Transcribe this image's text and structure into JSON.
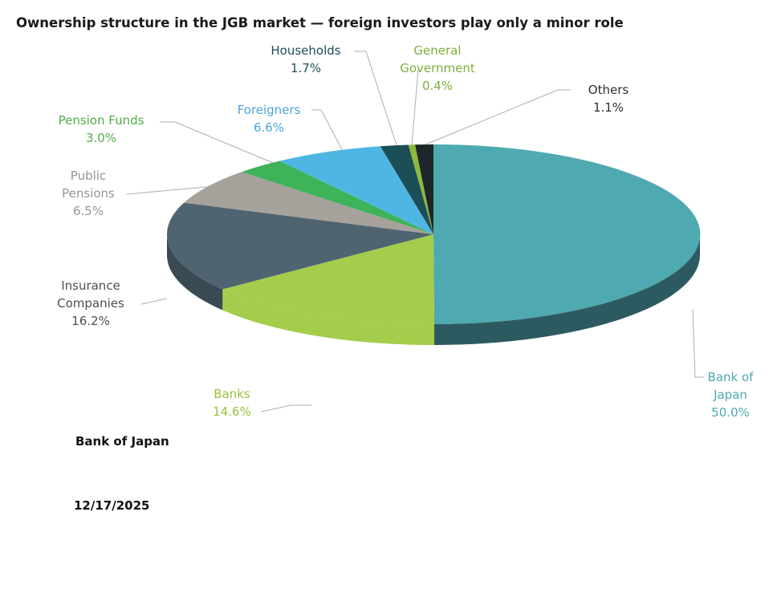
{
  "title": "Ownership structure in the JGB market — foreign investors play only a minor role",
  "source": "Bank of Japan",
  "date": "12/17/2025",
  "chart_data": {
    "type": "pie",
    "style": "3d",
    "title": "Ownership structure in the JGB market — foreign investors play only a minor role",
    "unit": "%",
    "start_angle_deg": 0,
    "direction": "clockwise",
    "slices": [
      {
        "key": "boj",
        "label_lines": [
          "Bank of",
          "Japan"
        ],
        "value": 50.0,
        "value_label": "50.0%",
        "color": "#4fa9b0",
        "side_color": "#2d5a60",
        "label_color": "#4fa9b0"
      },
      {
        "key": "banks",
        "label_lines": [
          "Banks"
        ],
        "value": 14.6,
        "value_label": "14.6%",
        "color": "#a3cd4b",
        "side_color": "#a3cd4b",
        "label_color": "#99c23c"
      },
      {
        "key": "insurance",
        "label_lines": [
          "Insurance",
          "Companies"
        ],
        "value": 16.2,
        "value_label": "16.2%",
        "color": "#4f6470",
        "side_color": "#3a4a53",
        "label_color": "#4a4f55"
      },
      {
        "key": "public_pensions",
        "label_lines": [
          "Public",
          "Pensions"
        ],
        "value": 6.5,
        "value_label": "6.5%",
        "color": "#a6a19b",
        "side_color": "#8d8883",
        "label_color": "#9b948e"
      },
      {
        "key": "pension_funds",
        "label_lines": [
          "Pension Funds"
        ],
        "value": 3.0,
        "value_label": "3.0%",
        "color": "#3fb35a",
        "side_color": "#2f8a46",
        "label_color": "#4fae4a"
      },
      {
        "key": "foreigners",
        "label_lines": [
          "Foreigners"
        ],
        "value": 6.6,
        "value_label": "6.6%",
        "color": "#4fb6e3",
        "side_color": "#3a8cb0",
        "label_color": "#4fa5d8"
      },
      {
        "key": "households",
        "label_lines": [
          "Households"
        ],
        "value": 1.7,
        "value_label": "1.7%",
        "color": "#1c4e57",
        "side_color": "#143a41",
        "label_color": "#1f4d56"
      },
      {
        "key": "general_government",
        "label_lines": [
          "General",
          "Government"
        ],
        "value": 0.4,
        "value_label": "0.4%",
        "color": "#8fb93a",
        "side_color": "#6f922b",
        "label_color": "#7fae3c"
      },
      {
        "key": "others",
        "label_lines": [
          "Others"
        ],
        "value": 1.1,
        "value_label": "1.1%",
        "color": "#1e262b",
        "side_color": "#151b1f",
        "label_color": "#2a2f33"
      }
    ]
  }
}
